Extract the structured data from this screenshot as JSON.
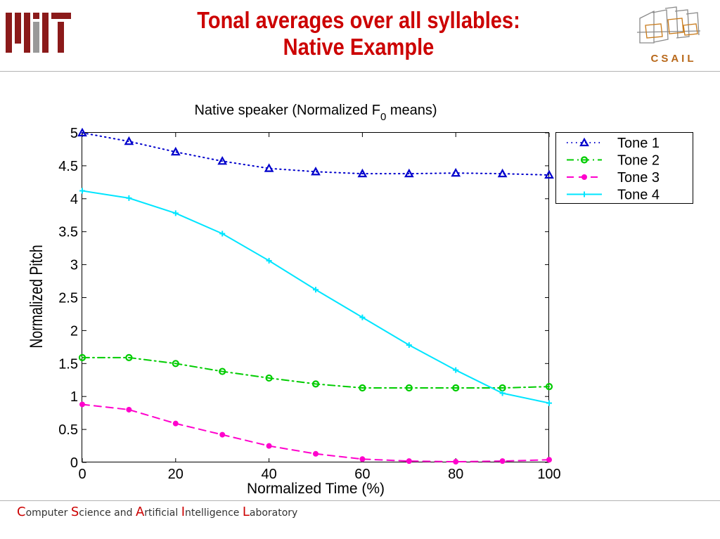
{
  "slide": {
    "title_line1": "Tonal averages over all syllables:",
    "title_line2": "Native Example",
    "logo_text": "CSAIL",
    "mit_logo_color": "#8b1a1a",
    "title_color": "#cc0000"
  },
  "footer": {
    "words": [
      {
        "cap": "C",
        "rest": "omputer"
      },
      {
        "cap": "S",
        "rest": "cience and"
      },
      {
        "cap": "A",
        "rest": "rtificial"
      },
      {
        "cap": "I",
        "rest": "ntelligence"
      },
      {
        "cap": "L",
        "rest": "aboratory"
      }
    ]
  },
  "chart_data": {
    "type": "line",
    "title_main": "Native speaker (Normalized F",
    "title_sub": "0",
    "title_tail": " means)",
    "xlabel": "Normalized Time (%)",
    "ylabel": "Normalized Pitch",
    "xlim": [
      0,
      100
    ],
    "ylim": [
      0,
      5
    ],
    "xticks": [
      0,
      20,
      40,
      60,
      80,
      100
    ],
    "xtick_labels": [
      "0",
      "20",
      "40",
      "60",
      "80",
      "100"
    ],
    "yticks": [
      0,
      0.5,
      1,
      1.5,
      2,
      2.5,
      3,
      3.5,
      4,
      4.5,
      5
    ],
    "ytick_labels": [
      "0",
      "0.5",
      "1",
      "1.5",
      "2",
      "2.5",
      "3",
      "3.5",
      "4",
      "4.5",
      "5"
    ],
    "grid": false,
    "legend_position": "top-right",
    "x": [
      0,
      10,
      20,
      30,
      40,
      50,
      60,
      70,
      80,
      90,
      100
    ],
    "series": [
      {
        "name": "Tone 1",
        "color": "#0000cc",
        "line": "dotted",
        "marker": "triangle",
        "values": [
          5.0,
          4.87,
          4.71,
          4.57,
          4.46,
          4.41,
          4.38,
          4.38,
          4.39,
          4.38,
          4.36
        ]
      },
      {
        "name": "Tone 2",
        "color": "#00cc00",
        "line": "dashdot",
        "marker": "circle",
        "values": [
          1.59,
          1.59,
          1.5,
          1.38,
          1.28,
          1.19,
          1.13,
          1.13,
          1.13,
          1.13,
          1.15
        ]
      },
      {
        "name": "Tone 3",
        "color": "#ff00cc",
        "line": "dashed",
        "marker": "dot",
        "values": [
          0.88,
          0.8,
          0.59,
          0.42,
          0.25,
          0.13,
          0.05,
          0.02,
          0.01,
          0.02,
          0.04
        ]
      },
      {
        "name": "Tone 4",
        "color": "#00e5ff",
        "line": "solid",
        "marker": "plus",
        "values": [
          4.12,
          4.01,
          3.78,
          3.47,
          3.06,
          2.62,
          2.2,
          1.78,
          1.4,
          1.05,
          0.9
        ]
      }
    ]
  }
}
